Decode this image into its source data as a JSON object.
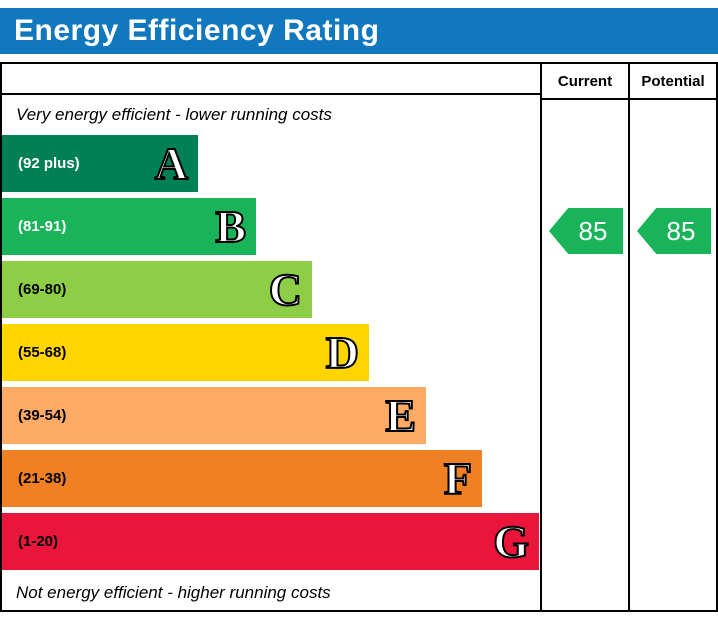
{
  "title": "Energy Efficiency Rating",
  "header_bg": "#1278be",
  "columns": {
    "current": "Current",
    "potential": "Potential"
  },
  "top_note": "Very energy efficient - lower running costs",
  "bottom_note": "Not energy efficient - higher running costs",
  "bands": [
    {
      "letter": "A",
      "range": "(92 plus)",
      "color": "#008054",
      "text_color": "#ffffff"
    },
    {
      "letter": "B",
      "range": "(81-91)",
      "color": "#19b459",
      "text_color": "#ffffff"
    },
    {
      "letter": "C",
      "range": "(69-80)",
      "color": "#8dce46",
      "text_color": "#000000"
    },
    {
      "letter": "D",
      "range": "(55-68)",
      "color": "#ffd500",
      "text_color": "#000000"
    },
    {
      "letter": "E",
      "range": "(39-54)",
      "color": "#fcaa65",
      "text_color": "#000000"
    },
    {
      "letter": "F",
      "range": "(21-38)",
      "color": "#ef8023",
      "text_color": "#000000"
    },
    {
      "letter": "G",
      "range": "(1-20)",
      "color": "#e9153b",
      "text_color": "#000000"
    }
  ],
  "current": {
    "value": "85",
    "arrow_color": "#19b459"
  },
  "potential": {
    "value": "85",
    "arrow_color": "#19b459"
  },
  "chart_data": {
    "type": "bar",
    "title": "Energy Efficiency Rating",
    "categories": [
      "A",
      "B",
      "C",
      "D",
      "E",
      "F",
      "G"
    ],
    "ranges": [
      "92 plus",
      "81-91",
      "69-80",
      "55-68",
      "39-54",
      "21-38",
      "1-20"
    ],
    "colors": [
      "#008054",
      "#19b459",
      "#8dce46",
      "#ffd500",
      "#fcaa65",
      "#ef8023",
      "#e9153b"
    ],
    "bar_relative_lengths": [
      0.37,
      0.47,
      0.58,
      0.68,
      0.79,
      0.89,
      1.0
    ],
    "legend_entries": [
      "Current",
      "Potential"
    ],
    "current": 85,
    "potential": 85,
    "current_band": "B",
    "potential_band": "B",
    "top_annotation": "Very energy efficient - lower running costs",
    "bottom_annotation": "Not energy efficient - higher running costs"
  }
}
